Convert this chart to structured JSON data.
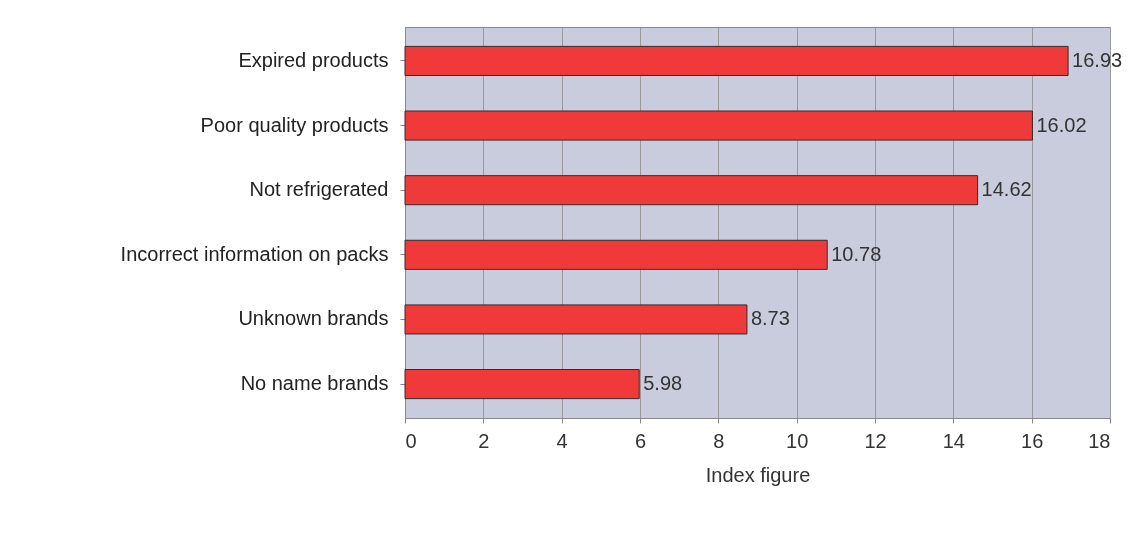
{
  "chart_data": {
    "type": "bar",
    "orientation": "horizontal",
    "xlabel": "Index figure",
    "categories": [
      "Expired products",
      "Poor quality products",
      "Not refrigerated",
      "Incorrect information on packs",
      "Unknown brands",
      "No name brands"
    ],
    "values": [
      16.93,
      16.02,
      14.62,
      10.78,
      8.73,
      5.98
    ],
    "color": "#f03a3a",
    "xlim": [
      0,
      18
    ],
    "xticks": [
      0,
      2,
      4,
      6,
      8,
      10,
      12,
      14,
      16,
      18
    ],
    "grid": "x",
    "data_labels": true
  }
}
